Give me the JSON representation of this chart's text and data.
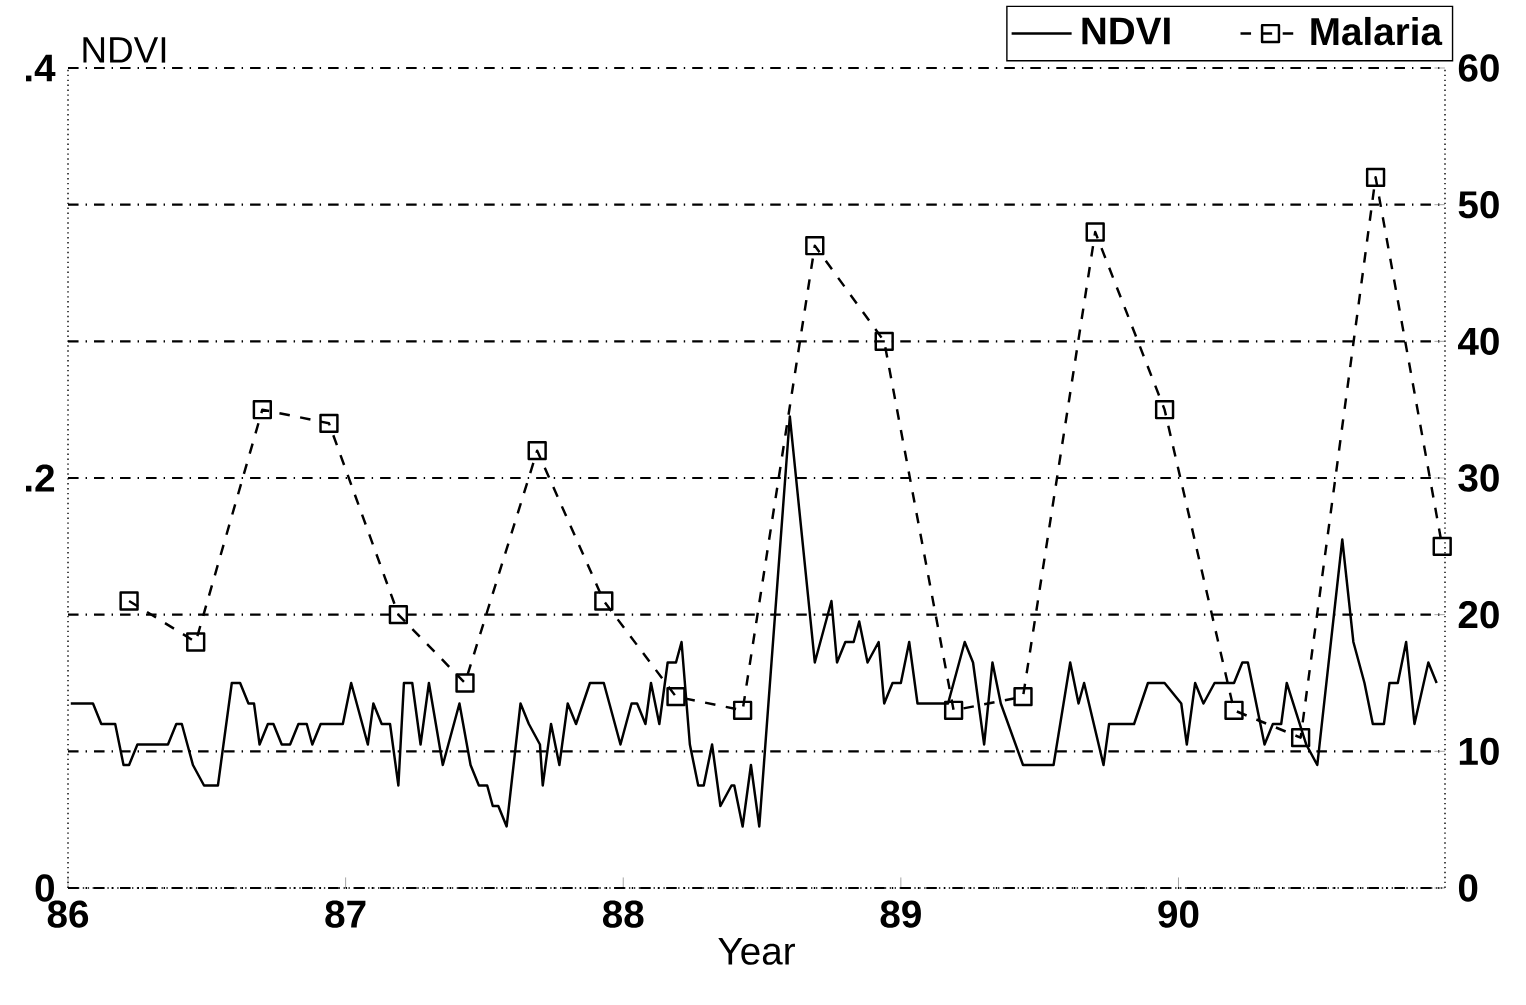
{
  "chart_data": {
    "type": "line",
    "xlabel": "Year",
    "ylabel": "NDVI",
    "xlim": [
      86,
      90.96
    ],
    "xticks": [
      86,
      87,
      88,
      89,
      90
    ],
    "ylim": [
      0,
      0.4
    ],
    "yticks": [
      {
        "value": 0,
        "label": "0"
      },
      {
        "value": 0.2,
        "label": ".2"
      },
      {
        "value": 0.4,
        "label": ".4"
      }
    ],
    "y2lim": [
      0,
      60
    ],
    "y2ticks": [
      0,
      10,
      20,
      30,
      40,
      50,
      60
    ],
    "grid": "y",
    "legend": "top right",
    "series": [
      {
        "name": "NDVI",
        "color": "#000000",
        "line_style": "solid",
        "marker": "none",
        "x": [
          86.01,
          86.09,
          86.12,
          86.17,
          86.2,
          86.22,
          86.25,
          86.36,
          86.39,
          86.41,
          86.43,
          86.45,
          86.49,
          86.54,
          86.59,
          86.62,
          86.65,
          86.67,
          86.69,
          86.72,
          86.74,
          86.77,
          86.8,
          86.83,
          86.86,
          86.88,
          86.91,
          86.99,
          87.02,
          87.08,
          87.1,
          87.13,
          87.16,
          87.19,
          87.21,
          87.24,
          87.27,
          87.3,
          87.35,
          87.41,
          87.45,
          87.48,
          87.51,
          87.53,
          87.55,
          87.58,
          87.63,
          87.66,
          87.7,
          87.71,
          87.74,
          87.77,
          87.8,
          87.83,
          87.88,
          87.93,
          87.99,
          88.03,
          88.05,
          88.08,
          88.1,
          88.13,
          88.16,
          88.19,
          88.21,
          88.24,
          88.27,
          88.29,
          88.32,
          88.35,
          88.39,
          88.4,
          88.43,
          88.46,
          88.49,
          88.6,
          88.69,
          88.75,
          88.77,
          88.8,
          88.83,
          88.85,
          88.88,
          88.92,
          88.94,
          88.97,
          89.0,
          89.03,
          89.06,
          89.09,
          89.17,
          89.23,
          89.26,
          89.3,
          89.33,
          89.36,
          89.44,
          89.55,
          89.61,
          89.64,
          89.66,
          89.73,
          89.75,
          89.84,
          89.89,
          89.95,
          90.01,
          90.03,
          90.06,
          90.09,
          90.13,
          90.2,
          90.23,
          90.25,
          90.31,
          90.34,
          90.37,
          90.39,
          90.46,
          90.5,
          90.59,
          90.63,
          90.67,
          90.7,
          90.74,
          90.76,
          90.79,
          90.82,
          90.85,
          90.9,
          90.93
        ],
        "values": [
          0.09,
          0.09,
          0.08,
          0.08,
          0.06,
          0.06,
          0.07,
          0.07,
          0.08,
          0.08,
          0.07,
          0.06,
          0.05,
          0.05,
          0.1,
          0.1,
          0.09,
          0.09,
          0.07,
          0.08,
          0.08,
          0.07,
          0.07,
          0.08,
          0.08,
          0.07,
          0.08,
          0.08,
          0.1,
          0.07,
          0.09,
          0.08,
          0.08,
          0.05,
          0.1,
          0.1,
          0.07,
          0.1,
          0.06,
          0.09,
          0.06,
          0.05,
          0.05,
          0.04,
          0.04,
          0.03,
          0.09,
          0.08,
          0.07,
          0.05,
          0.08,
          0.06,
          0.09,
          0.08,
          0.1,
          0.1,
          0.07,
          0.09,
          0.09,
          0.08,
          0.1,
          0.08,
          0.11,
          0.11,
          0.12,
          0.07,
          0.05,
          0.05,
          0.07,
          0.04,
          0.05,
          0.05,
          0.03,
          0.06,
          0.03,
          0.23,
          0.11,
          0.14,
          0.11,
          0.12,
          0.12,
          0.13,
          0.11,
          0.12,
          0.09,
          0.1,
          0.1,
          0.12,
          0.09,
          0.09,
          0.09,
          0.12,
          0.11,
          0.07,
          0.11,
          0.09,
          0.06,
          0.06,
          0.11,
          0.09,
          0.1,
          0.06,
          0.08,
          0.08,
          0.1,
          0.1,
          0.09,
          0.07,
          0.1,
          0.09,
          0.1,
          0.1,
          0.11,
          0.11,
          0.07,
          0.08,
          0.08,
          0.1,
          0.07,
          0.06,
          0.17,
          0.12,
          0.1,
          0.08,
          0.08,
          0.1,
          0.1,
          0.12,
          0.08,
          0.11,
          0.1
        ]
      },
      {
        "name": "Malaria",
        "color": "#000000",
        "axis": "y2",
        "line_style": "dashed",
        "marker": "square",
        "x": [
          86.22,
          86.46,
          86.7,
          86.94,
          87.19,
          87.43,
          87.69,
          87.93,
          88.19,
          88.43,
          88.69,
          88.94,
          89.19,
          89.44,
          89.7,
          89.95,
          90.2,
          90.44,
          90.71,
          90.95
        ],
        "values": [
          21,
          18,
          35,
          34,
          20,
          15,
          32,
          21,
          14,
          13,
          47,
          40,
          13,
          14,
          48,
          35,
          13,
          11,
          52,
          25
        ]
      }
    ]
  }
}
